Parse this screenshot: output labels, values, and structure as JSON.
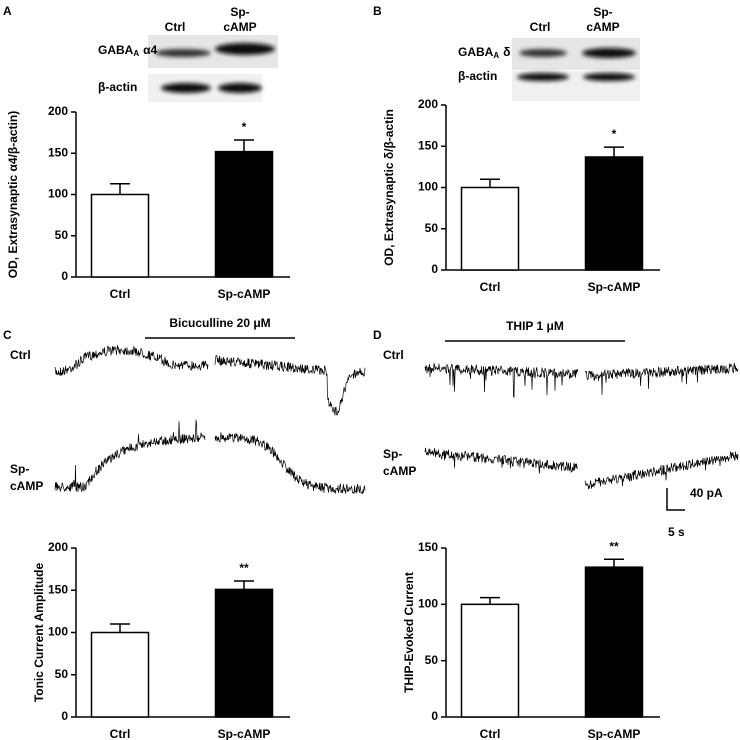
{
  "panels": [
    {
      "letter": "A",
      "blot": {
        "columns": [
          [
            "Ctrl"
          ],
          [
            "Sp-",
            "cAMP"
          ]
        ],
        "rows": [
          {
            "name": "GABA",
            "subscript": "A",
            "subunit": "α4"
          },
          {
            "name": "β-actin"
          }
        ]
      }
    },
    {
      "letter": "B",
      "blot": {
        "columns": [
          [
            "Ctrl"
          ],
          [
            "Sp-",
            "cAMP"
          ]
        ],
        "rows": [
          {
            "name": "GABA",
            "subscript": "A",
            "subunit": "δ"
          },
          {
            "name": "β-actin"
          }
        ]
      }
    },
    {
      "letter": "C",
      "trace": {
        "drug": "Bicuculline 20 μM",
        "rows": [
          [
            "Ctrl"
          ],
          [
            "Sp-",
            "cAMP"
          ]
        ]
      }
    },
    {
      "letter": "D",
      "trace": {
        "drug": "THIP 1 μM",
        "rows": [
          [
            "Ctrl"
          ],
          [
            "Sp-",
            "cAMP"
          ]
        ],
        "scale": {
          "y": "40 pA",
          "x": "5 s"
        }
      }
    }
  ],
  "chart_data": [
    {
      "type": "bar",
      "ylabel": "OD, Extrasynaptic  α4/β-actin)",
      "categories": [
        "Ctrl",
        "Sp-cAMP"
      ],
      "values": [
        100,
        152
      ],
      "errors": [
        13,
        14
      ],
      "colors": [
        "#ffffff",
        "#000000"
      ],
      "annotation": "*",
      "ylim": [
        0,
        200
      ],
      "yticks": [
        0,
        50,
        100,
        150,
        200
      ]
    },
    {
      "type": "bar",
      "ylabel": "OD, Extrasynaptic  δ/β-actin",
      "categories": [
        "Ctrl",
        "Sp-cAMP"
      ],
      "values": [
        100,
        137
      ],
      "errors": [
        10,
        12
      ],
      "colors": [
        "#ffffff",
        "#000000"
      ],
      "annotation": "*",
      "ylim": [
        0,
        200
      ],
      "yticks": [
        0,
        50,
        100,
        150,
        200
      ]
    },
    {
      "type": "bar",
      "ylabel": "Tonic Current Amplitude",
      "categories": [
        "Ctrl",
        "Sp-cAMP"
      ],
      "values": [
        100,
        151
      ],
      "errors": [
        10,
        10
      ],
      "colors": [
        "#ffffff",
        "#000000"
      ],
      "annotation": "**",
      "ylim": [
        0,
        200
      ],
      "yticks": [
        0,
        50,
        100,
        150,
        200
      ]
    },
    {
      "type": "bar",
      "ylabel": "THIP-Evoked Current",
      "categories": [
        "Ctrl",
        "Sp-cAMP"
      ],
      "values": [
        100,
        133
      ],
      "errors": [
        6,
        7
      ],
      "colors": [
        "#ffffff",
        "#000000"
      ],
      "annotation": "**",
      "ylim": [
        0,
        150
      ],
      "yticks": [
        0,
        50,
        100,
        150
      ]
    }
  ]
}
